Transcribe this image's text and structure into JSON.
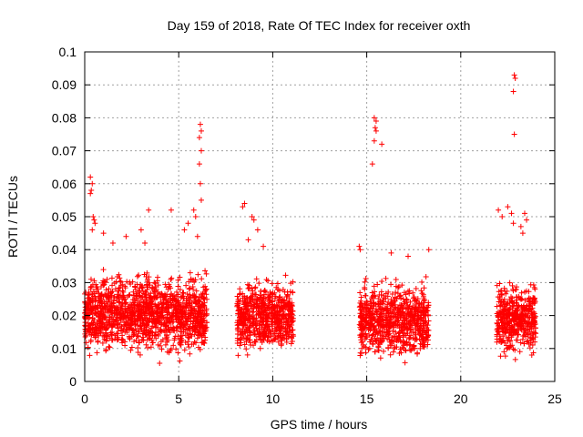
{
  "chart_data": {
    "type": "scatter",
    "title": "Day 159 of 2018, Rate Of TEC Index for receiver oxth",
    "xlabel": "GPS time / hours",
    "ylabel": "ROTI / TECUs",
    "xlim": [
      0,
      25
    ],
    "ylim": [
      0,
      0.1
    ],
    "grid": true,
    "marker": "+",
    "x_ticks": [
      0,
      5,
      10,
      15,
      20,
      25
    ],
    "y_ticks": [
      0,
      0.01,
      0.02,
      0.03,
      0.04,
      0.05,
      0.06,
      0.07,
      0.08,
      0.09,
      0.1
    ],
    "x_tick_labels": [
      "0",
      "5",
      "10",
      "15",
      "20",
      "25"
    ],
    "y_tick_labels": [
      "0",
      "0.01",
      "0.02",
      "0.03",
      "0.04",
      "0.05",
      "0.06",
      "0.07",
      "0.08",
      "0.09",
      "0.1"
    ],
    "series": [
      {
        "name": "ROTI",
        "color": "#ff0000",
        "clusters": [
          {
            "x_start": 0.0,
            "x_end": 6.5,
            "y_min": 0.005,
            "y_max": 0.036,
            "count": 1400
          },
          {
            "x_start": 8.1,
            "x_end": 11.1,
            "y_min": 0.006,
            "y_max": 0.034,
            "count": 650
          },
          {
            "x_start": 14.6,
            "x_end": 18.3,
            "y_min": 0.004,
            "y_max": 0.033,
            "count": 750
          },
          {
            "x_start": 21.9,
            "x_end": 24.0,
            "y_min": 0.005,
            "y_max": 0.034,
            "count": 450
          }
        ],
        "points": [
          [
            0.3,
            0.062
          ],
          [
            0.4,
            0.06
          ],
          [
            0.35,
            0.058
          ],
          [
            0.3,
            0.057
          ],
          [
            0.45,
            0.05
          ],
          [
            0.5,
            0.049
          ],
          [
            0.55,
            0.048
          ],
          [
            0.4,
            0.046
          ],
          [
            1.0,
            0.045
          ],
          [
            1.5,
            0.042
          ],
          [
            2.2,
            0.044
          ],
          [
            3.0,
            0.046
          ],
          [
            3.2,
            0.042
          ],
          [
            3.4,
            0.052
          ],
          [
            4.6,
            0.052
          ],
          [
            5.3,
            0.046
          ],
          [
            5.5,
            0.048
          ],
          [
            5.8,
            0.052
          ],
          [
            5.9,
            0.05
          ],
          [
            6.0,
            0.044
          ],
          [
            6.15,
            0.078
          ],
          [
            6.2,
            0.076
          ],
          [
            6.1,
            0.074
          ],
          [
            6.2,
            0.07
          ],
          [
            6.1,
            0.066
          ],
          [
            6.15,
            0.06
          ],
          [
            6.2,
            0.055
          ],
          [
            8.5,
            0.054
          ],
          [
            8.4,
            0.053
          ],
          [
            8.9,
            0.05
          ],
          [
            9.0,
            0.049
          ],
          [
            9.2,
            0.046
          ],
          [
            8.7,
            0.043
          ],
          [
            9.5,
            0.041
          ],
          [
            15.4,
            0.08
          ],
          [
            15.5,
            0.079
          ],
          [
            15.45,
            0.077
          ],
          [
            15.5,
            0.076
          ],
          [
            15.4,
            0.073
          ],
          [
            15.3,
            0.066
          ],
          [
            15.8,
            0.072
          ],
          [
            14.6,
            0.041
          ],
          [
            14.65,
            0.04
          ],
          [
            16.3,
            0.039
          ],
          [
            17.2,
            0.038
          ],
          [
            18.3,
            0.04
          ],
          [
            22.0,
            0.052
          ],
          [
            22.2,
            0.05
          ],
          [
            22.5,
            0.053
          ],
          [
            22.7,
            0.051
          ],
          [
            22.8,
            0.048
          ],
          [
            23.2,
            0.047
          ],
          [
            23.4,
            0.051
          ],
          [
            23.5,
            0.049
          ],
          [
            23.3,
            0.045
          ],
          [
            22.85,
            0.093
          ],
          [
            22.9,
            0.092
          ],
          [
            22.8,
            0.088
          ],
          [
            22.85,
            0.075
          ]
        ]
      }
    ]
  }
}
